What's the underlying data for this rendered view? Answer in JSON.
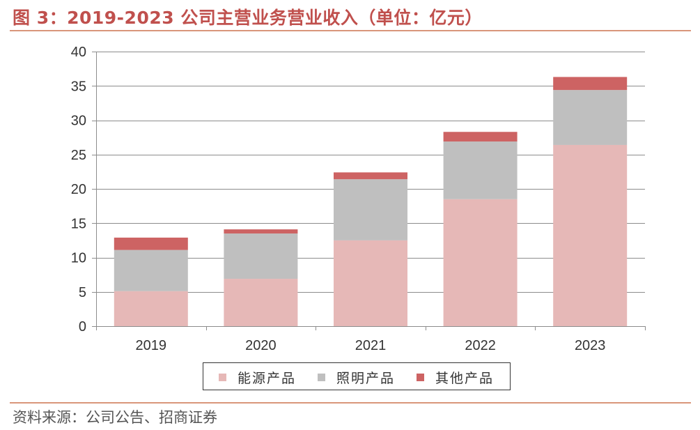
{
  "header": {
    "title": "图 3：2019-2023 公司主营业务营业收入（单位：亿元）"
  },
  "footer": {
    "source": "资料来源：公司公告、招商证券"
  },
  "chart_data": {
    "type": "bar",
    "stacked": true,
    "categories": [
      "2019",
      "2020",
      "2021",
      "2022",
      "2023"
    ],
    "series": [
      {
        "name": "能源产品",
        "color": "#e6b8b7",
        "values": [
          5.1,
          6.9,
          12.5,
          18.5,
          26.4
        ]
      },
      {
        "name": "照明产品",
        "color": "#bfbfbf",
        "values": [
          6.0,
          6.6,
          8.9,
          8.4,
          8.0
        ]
      },
      {
        "name": "其他产品",
        "color": "#cd6363",
        "values": [
          1.8,
          0.6,
          1.0,
          1.4,
          1.9
        ]
      }
    ],
    "ylim": [
      0,
      40
    ],
    "yticks": [
      0,
      5,
      10,
      15,
      20,
      25,
      30,
      35,
      40
    ],
    "grid": true,
    "legend": "bottom"
  }
}
